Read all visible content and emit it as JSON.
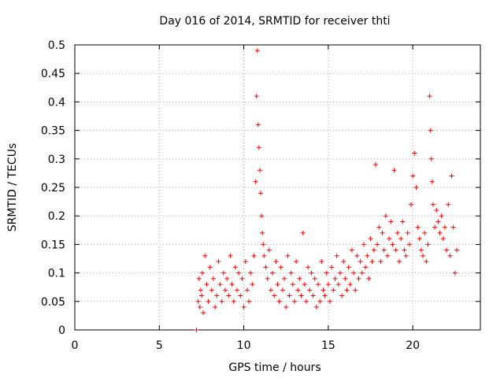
{
  "chart_data": {
    "type": "scatter",
    "title": "Day 016 of 2014, SRMTID for receiver thti",
    "xlabel": "GPS time / hours",
    "ylabel": "SRMTID / TECUs",
    "xlim": [
      0,
      24
    ],
    "ylim": [
      0,
      0.5
    ],
    "xticks": [
      0,
      5,
      10,
      15,
      20
    ],
    "xtick_labels": [
      "0",
      "5",
      "10",
      "15",
      "20"
    ],
    "yticks": [
      0,
      0.05,
      0.1,
      0.15,
      0.2,
      0.25,
      0.3,
      0.35,
      0.4,
      0.45,
      0.5
    ],
    "ytick_labels": [
      "0",
      "0.05",
      "0.1",
      "0.15",
      "0.2",
      "0.25",
      "0.3",
      "0.35",
      "0.4",
      "0.45",
      "0.5"
    ],
    "grid": true,
    "marker": "plus",
    "color": "#ff0000",
    "series": [
      {
        "name": "SRMTID",
        "x": [
          7.2,
          7.3,
          7.35,
          7.4,
          7.45,
          7.5,
          7.55,
          7.6,
          7.7,
          7.8,
          7.9,
          8.0,
          8.1,
          8.2,
          8.3,
          8.4,
          8.5,
          8.6,
          8.7,
          8.8,
          8.9,
          9.0,
          9.1,
          9.2,
          9.3,
          9.4,
          9.5,
          9.6,
          9.7,
          9.8,
          9.9,
          10.0,
          10.1,
          10.2,
          10.3,
          10.4,
          10.5,
          10.6,
          10.7,
          10.75,
          10.8,
          10.85,
          10.9,
          10.95,
          11.0,
          11.05,
          11.1,
          11.15,
          11.2,
          11.3,
          11.4,
          11.5,
          11.6,
          11.7,
          11.8,
          11.9,
          12.0,
          12.1,
          12.2,
          12.3,
          12.4,
          12.5,
          12.6,
          12.7,
          12.8,
          12.9,
          13.0,
          13.1,
          13.2,
          13.3,
          13.4,
          13.5,
          13.6,
          13.7,
          13.8,
          13.9,
          14.0,
          14.1,
          14.2,
          14.3,
          14.4,
          14.5,
          14.6,
          14.7,
          14.8,
          14.9,
          15.0,
          15.1,
          15.2,
          15.3,
          15.4,
          15.5,
          15.6,
          15.7,
          15.8,
          15.9,
          16.0,
          16.1,
          16.2,
          16.3,
          16.4,
          16.5,
          16.6,
          16.7,
          16.8,
          16.9,
          17.0,
          17.1,
          17.2,
          17.3,
          17.4,
          17.5,
          17.6,
          17.7,
          17.8,
          17.9,
          18.0,
          18.1,
          18.2,
          18.3,
          18.4,
          18.5,
          18.6,
          18.7,
          18.8,
          18.9,
          19.0,
          19.1,
          19.2,
          19.3,
          19.4,
          19.5,
          19.6,
          19.7,
          19.8,
          19.9,
          20.0,
          20.1,
          20.2,
          20.3,
          20.4,
          20.5,
          20.6,
          20.7,
          20.8,
          20.9,
          21.0,
          21.05,
          21.1,
          21.15,
          21.2,
          21.3,
          21.4,
          21.5,
          21.6,
          21.7,
          21.8,
          21.9,
          22.0,
          22.1,
          22.2,
          22.3,
          22.4,
          22.5,
          22.6
        ],
        "y": [
          0.0,
          0.05,
          0.09,
          0.04,
          0.07,
          0.06,
          0.1,
          0.03,
          0.13,
          0.08,
          0.05,
          0.11,
          0.07,
          0.09,
          0.04,
          0.06,
          0.12,
          0.08,
          0.05,
          0.1,
          0.07,
          0.09,
          0.06,
          0.13,
          0.08,
          0.05,
          0.11,
          0.07,
          0.1,
          0.06,
          0.09,
          0.04,
          0.12,
          0.07,
          0.05,
          0.1,
          0.08,
          0.13,
          0.26,
          0.41,
          0.49,
          0.36,
          0.32,
          0.28,
          0.24,
          0.2,
          0.17,
          0.15,
          0.13,
          0.11,
          0.09,
          0.14,
          0.07,
          0.1,
          0.06,
          0.12,
          0.08,
          0.05,
          0.11,
          0.07,
          0.09,
          0.04,
          0.13,
          0.06,
          0.1,
          0.08,
          0.05,
          0.12,
          0.07,
          0.09,
          0.06,
          0.17,
          0.08,
          0.05,
          0.11,
          0.07,
          0.1,
          0.06,
          0.09,
          0.04,
          0.08,
          0.05,
          0.12,
          0.07,
          0.06,
          0.1,
          0.08,
          0.05,
          0.11,
          0.07,
          0.09,
          0.13,
          0.08,
          0.1,
          0.06,
          0.12,
          0.09,
          0.07,
          0.11,
          0.08,
          0.14,
          0.1,
          0.07,
          0.13,
          0.09,
          0.12,
          0.1,
          0.15,
          0.11,
          0.13,
          0.09,
          0.16,
          0.12,
          0.14,
          0.29,
          0.15,
          0.18,
          0.12,
          0.17,
          0.14,
          0.2,
          0.13,
          0.16,
          0.19,
          0.15,
          0.28,
          0.14,
          0.17,
          0.12,
          0.16,
          0.19,
          0.14,
          0.13,
          0.17,
          0.15,
          0.22,
          0.27,
          0.31,
          0.25,
          0.18,
          0.16,
          0.14,
          0.13,
          0.17,
          0.12,
          0.15,
          0.41,
          0.35,
          0.3,
          0.26,
          0.22,
          0.18,
          0.21,
          0.19,
          0.17,
          0.2,
          0.16,
          0.18,
          0.14,
          0.22,
          0.13,
          0.27,
          0.18,
          0.1,
          0.14
        ]
      }
    ]
  }
}
